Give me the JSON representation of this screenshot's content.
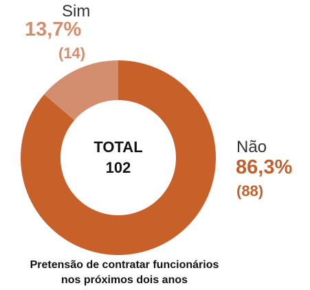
{
  "chart_data": {
    "type": "pie",
    "variant": "donut",
    "start_angle_deg": 0,
    "direction": "clockwise",
    "slices": [
      {
        "name": "Não",
        "percent_label": "86,3%",
        "count_label": "(88)",
        "value": 88,
        "color": "#C8602A",
        "label_color": "#C0612D"
      },
      {
        "name": "Sim",
        "percent_label": "13,7%",
        "count_label": "(14)",
        "value": 14,
        "color": "#D38E6F",
        "label_color": "#D08E6E"
      }
    ],
    "center": {
      "title": "TOTAL",
      "value": "102"
    },
    "caption_line1": "Pretensão de contratar funcionários",
    "caption_line2": "nos próximos dois anos"
  }
}
